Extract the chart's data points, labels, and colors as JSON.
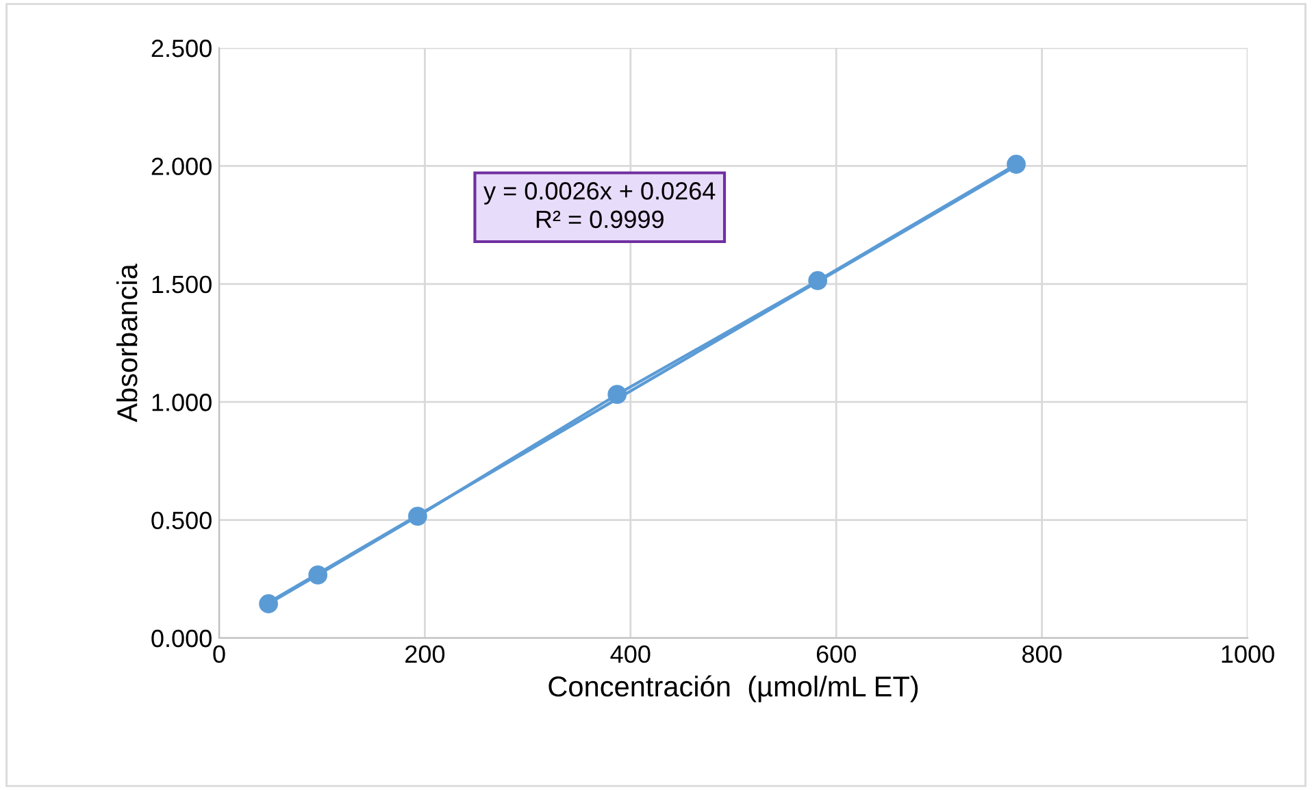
{
  "chart_data": {
    "type": "line",
    "xlabel": "Concentración  (µmol/mL ET)",
    "ylabel": "Absorbancia",
    "series": [
      {
        "color": "#5b9bd5",
        "marker": "circle",
        "x": [
          48,
          96,
          193,
          387,
          582,
          775
        ],
        "values": [
          0.145,
          0.267,
          0.516,
          1.032,
          1.514,
          2.007
        ]
      },
      {
        "color": "#5b9bd5",
        "marker": "none",
        "x": [
          48,
          775
        ],
        "values": [
          0.151,
          2.0
        ]
      }
    ],
    "xlim": [
      0,
      1000
    ],
    "xticks": [
      0,
      200,
      400,
      600,
      800,
      1000
    ],
    "ylim": [
      0,
      2.5
    ],
    "yticks": [
      {
        "value": 0,
        "label": "0.000"
      },
      {
        "value": 0.5,
        "label": "0.500"
      },
      {
        "value": 1,
        "label": "1.000"
      },
      {
        "value": 1.5,
        "label": "1.500"
      },
      {
        "value": 2,
        "label": "2.000"
      },
      {
        "value": 2.5,
        "label": "2.500"
      }
    ],
    "grid": true,
    "annotations": [
      "y = 0.0026x + 0.0264\nR² = 0.9999"
    ]
  }
}
